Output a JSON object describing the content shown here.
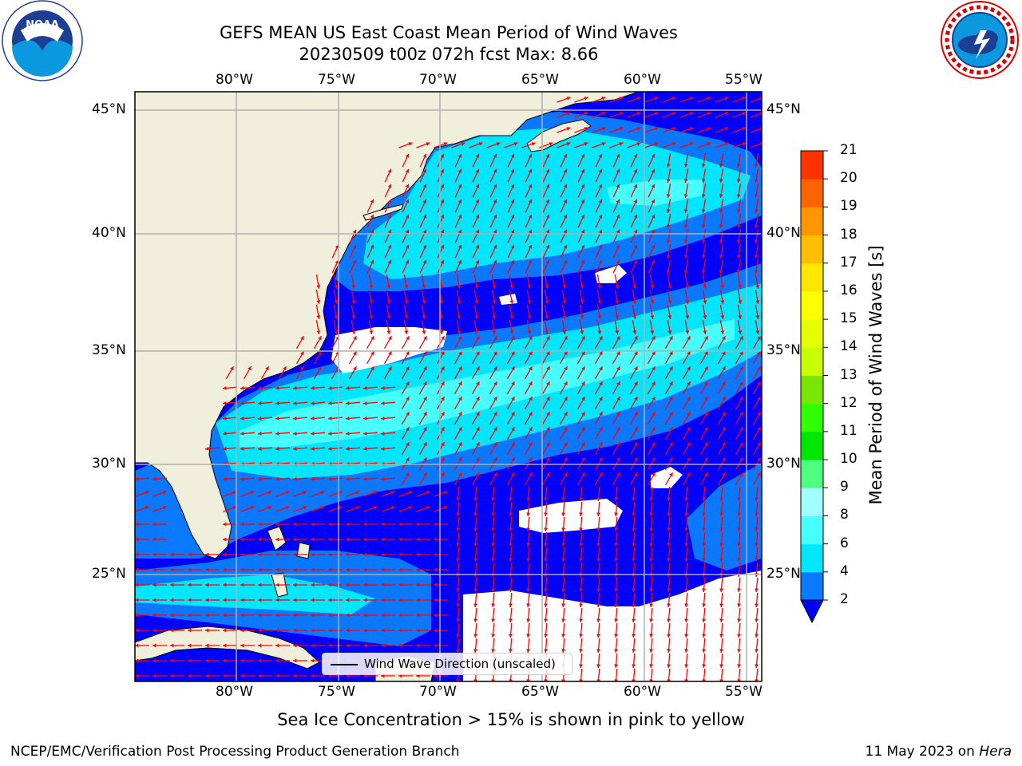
{
  "title": {
    "line1": "GEFS MEAN US East Coast Mean Period of Wind Waves",
    "line2": "20230509 t00z 072h fcst   Max: 8.66"
  },
  "logos": {
    "left": {
      "text": "NOAA",
      "ring_text": "NATIONAL OCEANIC AND ATMOSPHERIC ADMINISTRATION · U.S. DEPARTMENT OF COMMERCE"
    },
    "right": {
      "ring_text": "NATIONAL WEATHER SERVICE"
    }
  },
  "map": {
    "lon_labels": [
      "80°W",
      "75°W",
      "70°W",
      "65°W",
      "60°W",
      "55°W"
    ],
    "lat_labels": [
      "45°N",
      "40°N",
      "35°N",
      "30°N",
      "25°N"
    ],
    "legend_label": "Wind Wave Direction (unscaled)",
    "field_colors": {
      "band_2_4": "#0a78ff",
      "band_4_6": "#00e6ff",
      "band_6_8": "#47ffff",
      "below_2": "#0000ff",
      "land": "#efefdc",
      "missing": "#ffffff",
      "arrow": "#ff0000"
    }
  },
  "colorbar": {
    "label": "Mean Period of Wind Waves [s]",
    "ticks": [
      "2",
      "4",
      "6",
      "8",
      "9",
      "10",
      "11",
      "12",
      "13",
      "14",
      "15",
      "16",
      "17",
      "18",
      "19",
      "20",
      "21"
    ],
    "colors": [
      "#0a78ff",
      "#00e6ff",
      "#47ffff",
      "#a0ffff",
      "#50ff80",
      "#00e600",
      "#30ff00",
      "#7ae600",
      "#c8ff00",
      "#e6ff00",
      "#ffff00",
      "#ffe600",
      "#ffbf00",
      "#ff9600",
      "#ff6400",
      "#ff3200"
    ],
    "under_color": "#0000ff"
  },
  "caption": "Sea Ice Concentration > 15% is shown in pink to yellow",
  "footer": {
    "left": "NCEP/EMC/Verification Post Processing Product Generation Branch",
    "right_date": "11 May 2023 on",
    "right_host": "Hera"
  }
}
